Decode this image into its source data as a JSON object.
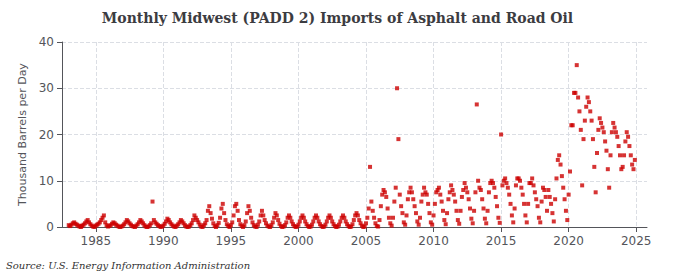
{
  "chart_data": {
    "type": "scatter",
    "title": "Monthly Midwest (PADD 2) Imports of Asphalt and Road Oil",
    "ylabel": "Thousand Barrels per Day",
    "annotation": "Source: U.S. Energy Information Administration",
    "color": "#cc0000",
    "marker": "square",
    "grid": true,
    "xlim": [
      1982.5,
      2025.8
    ],
    "xticks": [
      1985,
      1990,
      1995,
      2000,
      2005,
      2010,
      2015,
      2020,
      2025
    ],
    "ylim": [
      0,
      40
    ],
    "yticks": [
      0,
      10,
      20,
      30,
      40
    ],
    "x": [
      1983.0,
      1983.1,
      1983.2,
      1983.3,
      1983.4,
      1983.5,
      1983.6,
      1983.7,
      1983.8,
      1983.9,
      1983.95,
      1984.0,
      1984.1,
      1984.2,
      1984.3,
      1984.4,
      1984.5,
      1984.6,
      1984.7,
      1984.8,
      1984.9,
      1985.0,
      1985.1,
      1985.2,
      1985.3,
      1985.4,
      1985.5,
      1985.6,
      1985.7,
      1985.8,
      1985.9,
      1986.0,
      1986.1,
      1986.2,
      1986.3,
      1986.4,
      1986.5,
      1986.6,
      1986.7,
      1986.8,
      1986.9,
      1987.0,
      1987.1,
      1987.2,
      1987.3,
      1987.4,
      1987.5,
      1987.6,
      1987.7,
      1987.8,
      1987.9,
      1988.0,
      1988.1,
      1988.2,
      1988.3,
      1988.4,
      1988.5,
      1988.6,
      1988.7,
      1988.8,
      1988.9,
      1989.0,
      1989.1,
      1989.2,
      1989.3,
      1989.4,
      1989.5,
      1989.6,
      1989.7,
      1989.8,
      1989.9,
      1990.0,
      1990.1,
      1990.2,
      1990.3,
      1990.4,
      1990.5,
      1990.6,
      1990.7,
      1990.8,
      1990.9,
      1991.0,
      1991.1,
      1991.2,
      1991.3,
      1991.4,
      1991.5,
      1991.6,
      1991.7,
      1991.8,
      1991.9,
      1992.0,
      1992.1,
      1992.2,
      1992.3,
      1992.4,
      1992.5,
      1992.6,
      1992.7,
      1992.8,
      1992.9,
      1993.0,
      1993.1,
      1993.2,
      1993.3,
      1993.4,
      1993.5,
      1993.6,
      1993.7,
      1993.8,
      1993.9,
      1994.0,
      1994.1,
      1994.2,
      1994.3,
      1994.4,
      1994.5,
      1994.6,
      1994.7,
      1994.8,
      1994.9,
      1995.0,
      1995.1,
      1995.2,
      1995.3,
      1995.4,
      1995.5,
      1995.6,
      1995.7,
      1995.8,
      1995.9,
      1996.0,
      1996.1,
      1996.2,
      1996.3,
      1996.4,
      1996.5,
      1996.6,
      1996.7,
      1996.8,
      1996.9,
      1997.0,
      1997.1,
      1997.2,
      1997.3,
      1997.4,
      1997.5,
      1997.6,
      1997.7,
      1997.8,
      1997.9,
      1998.0,
      1998.1,
      1998.2,
      1998.3,
      1998.4,
      1998.5,
      1998.6,
      1998.7,
      1998.8,
      1998.9,
      1999.0,
      1999.1,
      1999.2,
      1999.3,
      1999.4,
      1999.5,
      1999.6,
      1999.7,
      1999.8,
      1999.9,
      2000.0,
      2000.1,
      2000.2,
      2000.3,
      2000.4,
      2000.5,
      2000.6,
      2000.7,
      2000.8,
      2000.9,
      2001.0,
      2001.1,
      2001.2,
      2001.3,
      2001.4,
      2001.5,
      2001.6,
      2001.7,
      2001.8,
      2001.9,
      2002.0,
      2002.1,
      2002.2,
      2002.3,
      2002.4,
      2002.5,
      2002.6,
      2002.7,
      2002.8,
      2002.9,
      2003.0,
      2003.1,
      2003.2,
      2003.3,
      2003.4,
      2003.5,
      2003.6,
      2003.7,
      2003.8,
      2003.9,
      2004.0,
      2004.1,
      2004.2,
      2004.3,
      2004.4,
      2004.5,
      2004.6,
      2004.7,
      2004.8,
      2004.9,
      2005.0,
      2005.1,
      2005.2,
      2005.3,
      2005.4,
      2005.5,
      2005.6,
      2005.7,
      2005.8,
      2005.9,
      2006.0,
      2006.1,
      2006.2,
      2006.3,
      2006.4,
      2006.5,
      2006.6,
      2006.7,
      2006.8,
      2006.9,
      2007.0,
      2007.1,
      2007.2,
      2007.3,
      2007.4,
      2007.5,
      2007.6,
      2007.7,
      2007.8,
      2007.9,
      2008.0,
      2008.1,
      2008.2,
      2008.3,
      2008.4,
      2008.5,
      2008.6,
      2008.7,
      2008.8,
      2008.9,
      2009.0,
      2009.1,
      2009.2,
      2009.3,
      2009.4,
      2009.5,
      2009.6,
      2009.7,
      2009.8,
      2009.9,
      2010.0,
      2010.1,
      2010.2,
      2010.3,
      2010.4,
      2010.5,
      2010.6,
      2010.7,
      2010.8,
      2010.9,
      2011.0,
      2011.1,
      2011.2,
      2011.3,
      2011.4,
      2011.5,
      2011.6,
      2011.7,
      2011.8,
      2011.9,
      2012.0,
      2012.1,
      2012.2,
      2012.3,
      2012.4,
      2012.5,
      2012.6,
      2012.7,
      2012.8,
      2012.9,
      2013.0,
      2013.1,
      2013.2,
      2013.3,
      2013.4,
      2013.5,
      2013.6,
      2013.7,
      2013.8,
      2013.9,
      2014.0,
      2014.1,
      2014.2,
      2014.3,
      2014.4,
      2014.5,
      2014.6,
      2014.7,
      2014.8,
      2014.9,
      2015.0,
      2015.1,
      2015.2,
      2015.3,
      2015.4,
      2015.5,
      2015.6,
      2015.7,
      2015.8,
      2015.9,
      2016.0,
      2016.1,
      2016.2,
      2016.3,
      2016.4,
      2016.5,
      2016.6,
      2016.7,
      2016.8,
      2016.9,
      2017.0,
      2017.1,
      2017.2,
      2017.3,
      2017.4,
      2017.5,
      2017.6,
      2017.7,
      2017.8,
      2017.9,
      2018.0,
      2018.1,
      2018.2,
      2018.3,
      2018.4,
      2018.5,
      2018.6,
      2018.7,
      2018.8,
      2018.9,
      2019.0,
      2019.1,
      2019.2,
      2019.3,
      2019.4,
      2019.5,
      2019.6,
      2019.7,
      2019.8,
      2019.9,
      2020.0,
      2020.1,
      2020.2,
      2020.3,
      2020.4,
      2020.5,
      2020.6,
      2020.7,
      2020.8,
      2020.9,
      2021.0,
      2021.1,
      2021.2,
      2021.3,
      2021.4,
      2021.5,
      2021.6,
      2021.7,
      2021.8,
      2021.9,
      2022.0,
      2022.1,
      2022.2,
      2022.3,
      2022.4,
      2022.5,
      2022.6,
      2022.7,
      2022.8,
      2022.9,
      2023.0,
      2023.1,
      2023.2,
      2023.3,
      2023.4,
      2023.5,
      2023.6,
      2023.7,
      2023.8,
      2023.9,
      2024.0,
      2024.1,
      2024.2,
      2024.3,
      2024.4,
      2024.5,
      2024.6,
      2024.7,
      2024.8,
      2024.9
    ],
    "values": [
      0.4,
      0.2,
      0.5,
      0.8,
      1.0,
      0.7,
      0.5,
      0.3,
      0.1,
      0.0,
      0.2,
      0.3,
      0.5,
      0.8,
      1.2,
      1.5,
      1.0,
      0.6,
      0.3,
      0.1,
      0.0,
      0.3,
      0.5,
      0.7,
      1.0,
      1.5,
      2.0,
      2.5,
      1.0,
      0.4,
      0.1,
      0.2,
      0.4,
      0.7,
      1.0,
      0.8,
      0.5,
      0.3,
      0.1,
      0.0,
      0.1,
      0.3,
      0.6,
      1.0,
      1.5,
      1.2,
      0.8,
      0.5,
      0.2,
      0.1,
      0.0,
      0.3,
      0.6,
      1.0,
      1.5,
      1.2,
      0.8,
      0.4,
      0.1,
      0.0,
      0.1,
      0.4,
      0.8,
      5.5,
      1.5,
      1.0,
      0.7,
      0.4,
      0.2,
      0.0,
      0.1,
      0.3,
      0.7,
      1.2,
      1.8,
      1.5,
      1.0,
      0.6,
      0.3,
      0.1,
      0.0,
      0.3,
      0.6,
      1.0,
      1.5,
      1.2,
      0.8,
      0.4,
      0.1,
      0.0,
      0.1,
      0.4,
      0.8,
      1.5,
      2.5,
      2.0,
      1.5,
      1.0,
      0.5,
      0.1,
      0.0,
      0.4,
      0.8,
      1.5,
      3.5,
      4.5,
      3.0,
      1.8,
      0.8,
      0.2,
      0.0,
      0.4,
      0.9,
      2.0,
      4.0,
      5.0,
      3.0,
      1.5,
      0.6,
      0.2,
      0.0,
      0.4,
      1.0,
      2.5,
      4.5,
      5.0,
      3.5,
      1.5,
      0.6,
      0.2,
      0.0,
      0.4,
      1.2,
      3.0,
      4.5,
      3.5,
      2.0,
      1.0,
      0.4,
      0.1,
      0.0,
      0.5,
      1.2,
      2.5,
      3.5,
      2.5,
      1.5,
      0.8,
      0.3,
      0.1,
      0.0,
      0.4,
      1.0,
      2.0,
      3.0,
      2.5,
      1.5,
      0.7,
      0.2,
      0.0,
      0.1,
      0.4,
      1.0,
      2.0,
      2.5,
      2.0,
      1.2,
      0.6,
      0.2,
      0.0,
      0.1,
      0.5,
      1.2,
      2.0,
      2.5,
      2.0,
      1.2,
      0.6,
      0.2,
      0.0,
      0.1,
      0.5,
      1.2,
      2.0,
      2.5,
      2.0,
      1.2,
      0.6,
      0.2,
      0.0,
      0.1,
      0.5,
      1.2,
      2.0,
      2.5,
      2.0,
      1.2,
      0.6,
      0.2,
      0.0,
      0.1,
      0.5,
      1.2,
      2.0,
      2.5,
      2.0,
      1.2,
      0.6,
      0.2,
      0.0,
      0.1,
      0.6,
      1.5,
      2.5,
      3.0,
      2.5,
      1.5,
      0.8,
      0.3,
      0.0,
      0.1,
      0.8,
      2.0,
      4.0,
      13.0,
      5.5,
      3.5,
      2.0,
      0.8,
      0.2,
      0.1,
      1.5,
      4.5,
      7.0,
      8.0,
      7.5,
      6.5,
      4.0,
      2.0,
      0.8,
      0.3,
      2.0,
      5.5,
      8.5,
      30.0,
      19.0,
      7.0,
      4.5,
      3.0,
      1.0,
      0.5,
      2.5,
      6.0,
      7.5,
      8.5,
      7.5,
      6.0,
      4.5,
      3.0,
      1.2,
      0.5,
      2.0,
      5.5,
      7.0,
      8.5,
      7.5,
      7.0,
      5.0,
      3.0,
      1.0,
      0.5,
      2.5,
      5.0,
      7.5,
      8.0,
      8.5,
      7.0,
      5.5,
      3.5,
      1.5,
      0.6,
      3.0,
      6.0,
      7.5,
      9.0,
      8.0,
      7.0,
      5.5,
      3.5,
      1.5,
      0.7,
      3.5,
      6.5,
      8.0,
      9.5,
      8.5,
      7.5,
      6.0,
      4.0,
      1.8,
      0.8,
      3.5,
      7.5,
      26.5,
      10.0,
      8.5,
      8.0,
      6.0,
      4.0,
      1.8,
      0.8,
      3.5,
      7.5,
      9.5,
      10.0,
      9.5,
      8.5,
      6.5,
      4.5,
      2.0,
      0.9,
      20.0,
      9.0,
      10.0,
      10.5,
      9.5,
      8.5,
      7.0,
      5.0,
      2.5,
      1.0,
      4.0,
      9.0,
      10.5,
      10.5,
      10.0,
      8.5,
      7.0,
      5.0,
      2.5,
      1.0,
      5.0,
      9.5,
      9.5,
      10.5,
      9.0,
      7.5,
      6.0,
      4.5,
      2.0,
      1.0,
      5.5,
      8.5,
      8.0,
      6.5,
      3.5,
      8.0,
      6.5,
      5.0,
      3.0,
      1.2,
      6.0,
      10.5,
      14.5,
      15.5,
      13.5,
      11.0,
      8.5,
      6.0,
      3.5,
      1.5,
      7.0,
      12.0,
      22.0,
      22.0,
      29.0,
      29.0,
      35.0,
      28.0,
      25.0,
      21.0,
      9.0,
      19.0,
      23.0,
      26.0,
      28.0,
      27.0,
      25.0,
      23.0,
      19.0,
      13.0,
      7.5,
      16.0,
      21.0,
      23.5,
      22.5,
      21.5,
      20.5,
      18.5,
      16.5,
      12.5,
      8.5,
      15.5,
      20.5,
      22.5,
      21.5,
      20.5,
      19.5,
      17.5,
      15.5,
      12.5,
      13.0,
      15.5,
      18.5,
      20.5,
      19.5,
      17.5,
      15.5,
      13.5,
      12.5,
      14.5
    ]
  }
}
